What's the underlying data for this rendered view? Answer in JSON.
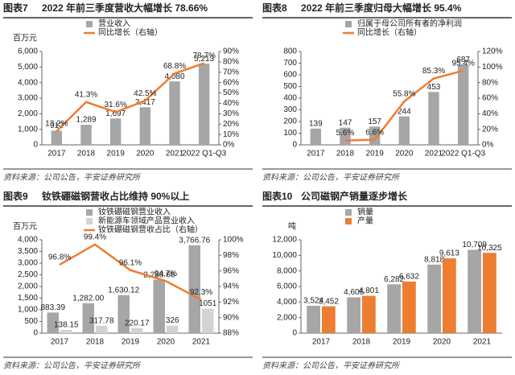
{
  "chart_data": [
    {
      "type": "bar",
      "label": "图表7",
      "title": "2022 年前三季度营收大幅增长 78.66%",
      "ylabel": "百万元",
      "source": "资料来源：公司公告，平安证券研究所",
      "categories": [
        "2017",
        "2018",
        "2019",
        "2020",
        "2021",
        "2022 Q1-Q3"
      ],
      "ylim": [
        0,
        6000
      ],
      "yticks": [
        0,
        {
          "value": 1000,
          "label": "1,000"
        },
        {
          "value": 2000,
          "label": "2,000"
        },
        {
          "value": 3000,
          "label": "3,000"
        },
        {
          "value": 4000,
          "label": "4,000"
        },
        {
          "value": 5000,
          "label": "5,000"
        },
        {
          "value": 6000,
          "label": "6,000"
        }
      ],
      "y2lim": [
        0,
        90
      ],
      "y2ticks": [
        {
          "value": 0,
          "label": "0%"
        },
        {
          "value": 10,
          "label": "10%"
        },
        {
          "value": 20,
          "label": "20%"
        },
        {
          "value": 30,
          "label": "30%"
        },
        {
          "value": 40,
          "label": "40%"
        },
        {
          "value": 50,
          "label": "50%"
        },
        {
          "value": 60,
          "label": "60%"
        },
        {
          "value": 70,
          "label": "70%"
        },
        {
          "value": 80,
          "label": "80%"
        },
        {
          "value": 90,
          "label": "90%"
        }
      ],
      "series": [
        {
          "name": "营业收入",
          "color": "#a6a6a6",
          "values": [
            912,
            1289,
            1697,
            2417,
            4080,
            5213
          ],
          "value_labels": [
            "912",
            "1,289",
            "1,697",
            "2,417",
            "4,080",
            "5,213"
          ]
        },
        {
          "name": "同比增长（右轴）",
          "type": "line",
          "axis": "y2",
          "color": "#ed7d31",
          "values": [
            13.2,
            41.3,
            31.6,
            42.5,
            68.8,
            78.7
          ],
          "value_labels": [
            "13.2%",
            "41.3%",
            "31.6%",
            "42.5%",
            "68.8%",
            "78.7%"
          ]
        }
      ]
    },
    {
      "type": "bar",
      "label": "图表8",
      "title": "2022 年前三季度归母大幅增长 95.4%",
      "source": "资料来源：公司公告，平安证券研究所",
      "categories": [
        "2017",
        "2018",
        "2019",
        "2020",
        "2021",
        "2022 Q1-Q3"
      ],
      "ylim": [
        0,
        800
      ],
      "yticks": [
        0,
        100,
        200,
        300,
        400,
        500,
        600,
        700,
        800
      ],
      "y2lim": [
        0,
        120
      ],
      "y2ticks": [
        {
          "value": 0,
          "label": "0%"
        },
        {
          "value": 20,
          "label": "20%"
        },
        {
          "value": 40,
          "label": "40%"
        },
        {
          "value": 60,
          "label": "60%"
        },
        {
          "value": 80,
          "label": "80%"
        },
        {
          "value": 100,
          "label": "100%"
        },
        {
          "value": 120,
          "label": "120%"
        }
      ],
      "series": [
        {
          "name": "归属于母公司所有者的净利润",
          "color": "#a6a6a6",
          "values": [
            139,
            147,
            157,
            244,
            453,
            687
          ]
        },
        {
          "name": "同比增长（右轴）",
          "type": "line",
          "axis": "y2",
          "color": "#ed7d31",
          "values": [
            null,
            5.6,
            6.6,
            55.8,
            85.3,
            95.4
          ],
          "value_labels": [
            null,
            "5.6%",
            "6.6%",
            "55.8%",
            "85.3%",
            "95.4%"
          ]
        }
      ]
    },
    {
      "type": "bar",
      "label": "图表9",
      "title": "钕铁硼磁钢营收占比维持 90%以上",
      "ylabel": "百万元",
      "source": "资料来源：公司公告，平安证券研究所",
      "categories": [
        "2017",
        "2018",
        "2019",
        "2020",
        "2021"
      ],
      "ylim": [
        0,
        4000
      ],
      "yticks": [
        0,
        500,
        {
          "value": 1000,
          "label": "1,000"
        },
        {
          "value": 1500,
          "label": "1,500"
        },
        {
          "value": 2000,
          "label": "2,000"
        },
        {
          "value": 2500,
          "label": "2,500"
        },
        {
          "value": 3000,
          "label": "3,000"
        },
        {
          "value": 3500,
          "label": "3,500"
        },
        {
          "value": 4000,
          "label": "4,000"
        }
      ],
      "y2lim": [
        88,
        100
      ],
      "y2ticks": [
        {
          "value": 88,
          "label": "88%"
        },
        {
          "value": 90,
          "label": "90%"
        },
        {
          "value": 92,
          "label": "92%"
        },
        {
          "value": 94,
          "label": "94%"
        },
        {
          "value": 96,
          "label": "96%"
        },
        {
          "value": 98,
          "label": "98%"
        },
        {
          "value": 100,
          "label": "100%"
        }
      ],
      "series": [
        {
          "name": "钕铁硼磁钢营业收入",
          "color": "#a6a6a6",
          "values": [
            883.39,
            1282.0,
            1630.12,
            2288.66,
            3766.76
          ],
          "value_labels": [
            "883.39",
            "1,282.00",
            "1,630.12",
            "2,288.66",
            "3,766.76"
          ]
        },
        {
          "name": "新能源车领域产品营业收入",
          "color": "#d3d3d3",
          "values": [
            138.15,
            317.78,
            220.17,
            326,
            1051
          ]
        },
        {
          "name": "钕铁硼磁钢营收占比（右轴）",
          "type": "line",
          "axis": "y2",
          "color": "#ed7d31",
          "values": [
            96.8,
            99.4,
            96.1,
            94.7,
            92.3
          ],
          "value_labels": [
            "96.8%",
            "99.4%",
            "96.1%",
            "94.7%",
            "92.3%"
          ]
        }
      ]
    },
    {
      "type": "bar",
      "label": "图表10",
      "title": "公司磁钢产销量逐步增长",
      "ylabel": "吨",
      "source": "资料来源：公司公告，平安证券研究所",
      "categories": [
        "2017",
        "2018",
        "2019",
        "2020",
        "2021"
      ],
      "ylim": [
        0,
        12000
      ],
      "yticks": [
        0,
        {
          "value": 2000,
          "label": "2,000"
        },
        {
          "value": 4000,
          "label": "4,000"
        },
        {
          "value": 6000,
          "label": "6,000"
        },
        {
          "value": 8000,
          "label": "8,000"
        },
        {
          "value": 10000,
          "label": "10,000"
        },
        {
          "value": 12000,
          "label": "12,000"
        }
      ],
      "series": [
        {
          "name": "销量",
          "color": "#a6a6a6",
          "values": [
            3524,
            4606,
            6282,
            8818,
            10709
          ],
          "value_labels": [
            "3,524",
            "4,606",
            "6,282",
            "8,818",
            "10,709"
          ]
        },
        {
          "name": "产量",
          "color": "#ed7d31",
          "values": [
            3452,
            4801,
            6632,
            9613,
            10325
          ],
          "value_labels": [
            "3,452",
            "4,801",
            "6,632",
            "9,613",
            "10,325"
          ]
        }
      ]
    }
  ]
}
